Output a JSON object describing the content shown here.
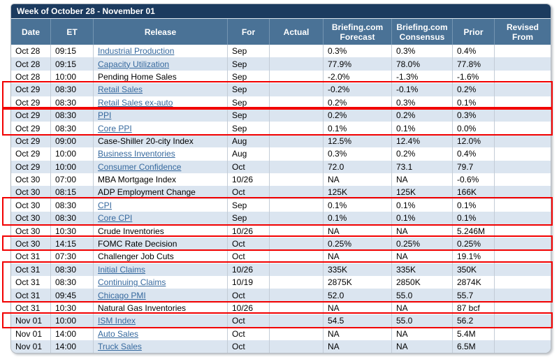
{
  "title": "Week of October 28 - November 01",
  "columns": [
    {
      "key": "date",
      "label": "Date"
    },
    {
      "key": "et",
      "label": "ET"
    },
    {
      "key": "release",
      "label": "Release"
    },
    {
      "key": "period",
      "label": "For"
    },
    {
      "key": "actual",
      "label": "Actual"
    },
    {
      "key": "forecast",
      "label": "Briefing.com Forecast"
    },
    {
      "key": "consensus",
      "label": "Briefing.com Consensus"
    },
    {
      "key": "prior",
      "label": "Prior"
    },
    {
      "key": "revised_from",
      "label": "Revised From"
    }
  ],
  "rows": [
    {
      "date": "Oct 28",
      "et": "09:15",
      "release": "Industrial Production",
      "is_link": true,
      "period": "Sep",
      "actual": "",
      "forecast": "0.3%",
      "consensus": "0.3%",
      "prior": "0.4%",
      "revised_from": ""
    },
    {
      "date": "Oct 28",
      "et": "09:15",
      "release": "Capacity Utilization",
      "is_link": true,
      "period": "Sep",
      "actual": "",
      "forecast": "77.9%",
      "consensus": "78.0%",
      "prior": "77.8%",
      "revised_from": ""
    },
    {
      "date": "Oct 28",
      "et": "10:00",
      "release": "Pending Home Sales",
      "is_link": false,
      "period": "Sep",
      "actual": "",
      "forecast": "-2.0%",
      "consensus": "-1.3%",
      "prior": "-1.6%",
      "revised_from": ""
    },
    {
      "date": "Oct 29",
      "et": "08:30",
      "release": "Retail Sales",
      "is_link": true,
      "period": "Sep",
      "actual": "",
      "forecast": "-0.2%",
      "consensus": "-0.1%",
      "prior": "0.2%",
      "revised_from": ""
    },
    {
      "date": "Oct 29",
      "et": "08:30",
      "release": "Retail Sales ex-auto",
      "is_link": true,
      "period": "Sep",
      "actual": "",
      "forecast": "0.2%",
      "consensus": "0.3%",
      "prior": "0.1%",
      "revised_from": ""
    },
    {
      "date": "Oct 29",
      "et": "08:30",
      "release": "PPI",
      "is_link": true,
      "period": "Sep",
      "actual": "",
      "forecast": "0.2%",
      "consensus": "0.2%",
      "prior": "0.3%",
      "revised_from": ""
    },
    {
      "date": "Oct 29",
      "et": "08:30",
      "release": "Core PPI",
      "is_link": true,
      "period": "Sep",
      "actual": "",
      "forecast": "0.1%",
      "consensus": "0.1%",
      "prior": "0.0%",
      "revised_from": ""
    },
    {
      "date": "Oct 29",
      "et": "09:00",
      "release": "Case-Shiller 20-city Index",
      "is_link": false,
      "period": "Aug",
      "actual": "",
      "forecast": "12.5%",
      "consensus": "12.4%",
      "prior": "12.0%",
      "revised_from": ""
    },
    {
      "date": "Oct 29",
      "et": "10:00",
      "release": "Business Inventories",
      "is_link": true,
      "period": "Aug",
      "actual": "",
      "forecast": "0.3%",
      "consensus": "0.2%",
      "prior": "0.4%",
      "revised_from": ""
    },
    {
      "date": "Oct 29",
      "et": "10:00",
      "release": "Consumer Confidence",
      "is_link": true,
      "period": "Oct",
      "actual": "",
      "forecast": "72.0",
      "consensus": "73.1",
      "prior": "79.7",
      "revised_from": ""
    },
    {
      "date": "Oct 30",
      "et": "07:00",
      "release": "MBA Mortgage Index",
      "is_link": false,
      "period": "10/26",
      "actual": "",
      "forecast": "NA",
      "consensus": "NA",
      "prior": "-0.6%",
      "revised_from": ""
    },
    {
      "date": "Oct 30",
      "et": "08:15",
      "release": "ADP Employment Change",
      "is_link": false,
      "period": "Oct",
      "actual": "",
      "forecast": "125K",
      "consensus": "125K",
      "prior": "166K",
      "revised_from": ""
    },
    {
      "date": "Oct 30",
      "et": "08:30",
      "release": "CPI",
      "is_link": true,
      "period": "Sep",
      "actual": "",
      "forecast": "0.1%",
      "consensus": "0.1%",
      "prior": "0.1%",
      "revised_from": ""
    },
    {
      "date": "Oct 30",
      "et": "08:30",
      "release": "Core CPI",
      "is_link": true,
      "period": "Sep",
      "actual": "",
      "forecast": "0.1%",
      "consensus": "0.1%",
      "prior": "0.1%",
      "revised_from": ""
    },
    {
      "date": "Oct 30",
      "et": "10:30",
      "release": "Crude Inventories",
      "is_link": false,
      "period": "10/26",
      "actual": "",
      "forecast": "NA",
      "consensus": "NA",
      "prior": "5.246M",
      "revised_from": ""
    },
    {
      "date": "Oct 30",
      "et": "14:15",
      "release": "FOMC Rate Decision",
      "is_link": false,
      "period": "Oct",
      "actual": "",
      "forecast": "0.25%",
      "consensus": "0.25%",
      "prior": "0.25%",
      "revised_from": ""
    },
    {
      "date": "Oct 31",
      "et": "07:30",
      "release": "Challenger Job Cuts",
      "is_link": false,
      "period": "Oct",
      "actual": "",
      "forecast": "NA",
      "consensus": "NA",
      "prior": "19.1%",
      "revised_from": ""
    },
    {
      "date": "Oct 31",
      "et": "08:30",
      "release": "Initial Claims",
      "is_link": true,
      "period": "10/26",
      "actual": "",
      "forecast": "335K",
      "consensus": "335K",
      "prior": "350K",
      "revised_from": ""
    },
    {
      "date": "Oct 31",
      "et": "08:30",
      "release": "Continuing Claims",
      "is_link": true,
      "period": "10/19",
      "actual": "",
      "forecast": "2875K",
      "consensus": "2850K",
      "prior": "2874K",
      "revised_from": ""
    },
    {
      "date": "Oct 31",
      "et": "09:45",
      "release": "Chicago PMI",
      "is_link": true,
      "period": "Oct",
      "actual": "",
      "forecast": "52.0",
      "consensus": "55.0",
      "prior": "55.7",
      "revised_from": ""
    },
    {
      "date": "Oct 31",
      "et": "10:30",
      "release": "Natural Gas Inventories",
      "is_link": false,
      "period": "10/26",
      "actual": "",
      "forecast": "NA",
      "consensus": "NA",
      "prior": "87 bcf",
      "revised_from": ""
    },
    {
      "date": "Nov 01",
      "et": "10:00",
      "release": "ISM Index",
      "is_link": true,
      "period": "Oct",
      "actual": "",
      "forecast": "54.5",
      "consensus": "55.0",
      "prior": "56.2",
      "revised_from": ""
    },
    {
      "date": "Nov 01",
      "et": "14:00",
      "release": "Auto Sales",
      "is_link": true,
      "period": "Oct",
      "actual": "",
      "forecast": "NA",
      "consensus": "NA",
      "prior": "5.4M",
      "revised_from": ""
    },
    {
      "date": "Nov 01",
      "et": "14:00",
      "release": "Truck Sales",
      "is_link": true,
      "period": "Oct",
      "actual": "",
      "forecast": "NA",
      "consensus": "NA",
      "prior": "6.5M",
      "revised_from": ""
    }
  ],
  "highlight_groups": [
    [
      4,
      5
    ],
    [
      6,
      7
    ],
    [
      13,
      14
    ],
    [
      16,
      16
    ],
    [
      18,
      20
    ],
    [
      22,
      22
    ]
  ],
  "colors": {
    "title_bar": "#1c3b5f",
    "header_bg": "#4a7296",
    "stripe": "#dbe5f0",
    "link": "#36699e",
    "highlight": "#f20000",
    "grid_line": "#c3ccd6",
    "table_border": "#b4bbc2"
  }
}
